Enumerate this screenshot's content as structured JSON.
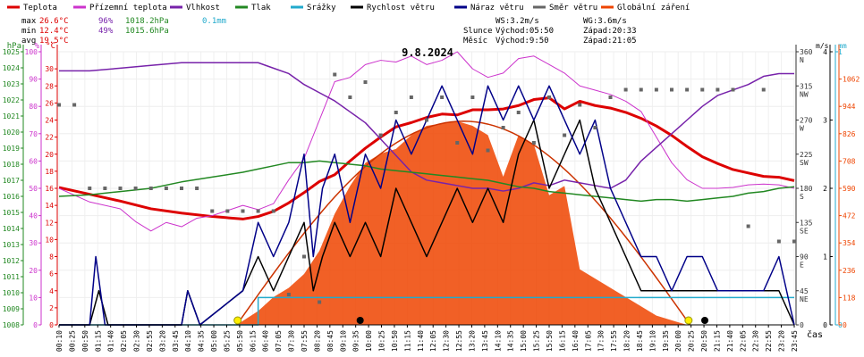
{
  "legend": [
    {
      "label": "Teplota",
      "color": "#dd0000"
    },
    {
      "label": "Přízemní teplota",
      "color": "#cc33cc"
    },
    {
      "label": "Vlhkost",
      "color": "#7722aa"
    },
    {
      "label": "Tlak",
      "color": "#228822"
    },
    {
      "label": "Srážky",
      "color": "#22aacc"
    },
    {
      "label": "Rychlost větru",
      "color": "#000000"
    },
    {
      "label": "Náraz větru",
      "color": "#000088"
    },
    {
      "label": "Směr větru",
      "color": "#666666"
    },
    {
      "label": "Globální záření",
      "color": "#ee4400"
    }
  ],
  "stats": {
    "max_label": "max",
    "max_temp": "26.6°C",
    "max_hum": "96%",
    "max_press": "1018.2hPa",
    "max_rain": "0.1mm",
    "min_label": "min",
    "min_temp": "12.4°C",
    "min_hum": "49%",
    "min_press": "1015.6hPa",
    "avg_label": "avg",
    "avg_temp": "19.5°C"
  },
  "wind_info": {
    "ws": "WS:3.2m/s",
    "wg": "WG:3.6m/s"
  },
  "sun_info": {
    "label": "Slunce",
    "rise": "Východ:05:50",
    "set": "Západ:20:33"
  },
  "moon_info": {
    "label": "Měsíc",
    "rise": "Východ:9:50",
    "set": "Západ:21:05"
  },
  "chart_data": {
    "type": "line",
    "title": "9.8.2024",
    "xlabel": "čas",
    "x_ticks": [
      "00:10",
      "00:25",
      "00:50",
      "01:15",
      "01:40",
      "02:05",
      "02:30",
      "02:55",
      "03:20",
      "03:45",
      "04:10",
      "04:35",
      "05:00",
      "05:25",
      "05:50",
      "06:15",
      "06:40",
      "07:05",
      "07:30",
      "07:55",
      "08:20",
      "08:45",
      "09:10",
      "09:35",
      "10:00",
      "10:25",
      "10:50",
      "11:15",
      "11:40",
      "12:05",
      "12:30",
      "12:55",
      "13:20",
      "13:45",
      "14:10",
      "14:35",
      "15:00",
      "15:25",
      "15:50",
      "16:15",
      "16:40",
      "17:05",
      "17:30",
      "17:55",
      "18:20",
      "18:45",
      "19:10",
      "19:35",
      "20:00",
      "20:25",
      "20:50",
      "21:15",
      "21:40",
      "22:05",
      "22:30",
      "22:55",
      "23:20",
      "23:45"
    ],
    "axes": {
      "hpa": {
        "label": "hPa",
        "min": 1008,
        "max": 1025,
        "ticks": [
          "1008",
          "1009",
          "1010",
          "1011",
          "1012",
          "1013",
          "1014",
          "1015",
          "1016",
          "1017",
          "1018",
          "1019",
          "1020",
          "1021",
          "1022",
          "1023",
          "1024",
          "1025"
        ]
      },
      "pct": {
        "label": "%",
        "min": 0,
        "max": 100,
        "ticks": [
          "0",
          "10",
          "20",
          "30",
          "40",
          "50",
          "60",
          "70",
          "80",
          "90",
          "100"
        ]
      },
      "temp": {
        "label": "°C",
        "min": 0,
        "max": 32,
        "ticks": [
          "0",
          "2",
          "4",
          "6",
          "8",
          "10",
          "12",
          "14",
          "16",
          "18",
          "20",
          "22",
          "24",
          "26",
          "28",
          "30"
        ]
      },
      "dir": {
        "min": 0,
        "max": 360,
        "ticks": [
          "0",
          "45 NE",
          "90 E",
          "135 SE",
          "180 S",
          "225 SW",
          "270 W",
          "315 NW",
          "360 N"
        ]
      },
      "wind": {
        "label": "m/s",
        "min": 0,
        "max": 4,
        "ticks": [
          "0",
          "1",
          "2",
          "3",
          "4"
        ]
      },
      "rain": {
        "label": "mm",
        "min": 0,
        "max": 1,
        "ticks": [
          "0",
          "1"
        ]
      },
      "rad": {
        "min": 0,
        "max": 1180,
        "ticks": [
          "0",
          "118",
          "236",
          "354",
          "472",
          "590",
          "708",
          "826",
          "944",
          "1062"
        ]
      }
    },
    "series": [
      {
        "name": "Teplota",
        "color": "#dd0000",
        "axis": "temp",
        "hours": [
          0,
          1,
          2,
          3,
          4,
          5,
          6,
          6.5,
          7,
          7.5,
          8,
          8.5,
          9,
          9.5,
          10,
          10.5,
          11,
          11.5,
          12,
          12.5,
          13,
          13.5,
          14,
          14.5,
          15,
          15.5,
          16,
          16.5,
          17,
          17.5,
          18,
          18.5,
          19,
          19.5,
          20,
          20.5,
          21,
          21.5,
          22,
          22.5,
          23,
          23.5,
          24
        ],
        "values": [
          16.1,
          15.3,
          14.5,
          13.6,
          13.1,
          12.7,
          12.4,
          12.7,
          13.3,
          14.3,
          15.5,
          16.8,
          17.6,
          19.2,
          20.7,
          22.0,
          23.2,
          23.7,
          24.3,
          24.7,
          24.6,
          25.2,
          25.2,
          25.3,
          25.7,
          26.4,
          26.6,
          25.3,
          26.2,
          25.7,
          25.4,
          24.9,
          24.2,
          23.3,
          22.2,
          20.9,
          19.7,
          18.9,
          18.2,
          17.8,
          17.4,
          17.3,
          16.9
        ]
      },
      {
        "name": "Přízemní teplota",
        "color": "#cc33cc",
        "axis": "temp",
        "hours": [
          0,
          1,
          2,
          2.5,
          3,
          3.5,
          4,
          4.5,
          5,
          5.5,
          6,
          6.5,
          7,
          7.5,
          8,
          8.5,
          9,
          9.5,
          10,
          10.5,
          11,
          11.5,
          12,
          12.5,
          13,
          13.5,
          14,
          14.5,
          15,
          15.5,
          16,
          16.5,
          17,
          17.5,
          18,
          18.5,
          19,
          19.5,
          20,
          20.5,
          21,
          21.5,
          22,
          22.5,
          23,
          23.5,
          24
        ],
        "values": [
          16.0,
          14.4,
          13.6,
          12.1,
          11.0,
          12.0,
          11.5,
          12.5,
          12.8,
          13.4,
          14.0,
          13.5,
          14.2,
          17.0,
          19.5,
          24.0,
          28.5,
          29.0,
          30.5,
          31.0,
          30.8,
          31.5,
          30.5,
          31.0,
          32.0,
          30.0,
          29.0,
          29.5,
          31.2,
          31.5,
          30.5,
          29.5,
          28.0,
          27.5,
          27.0,
          26.2,
          25.0,
          22.0,
          19.0,
          17.0,
          16.0,
          16.0,
          16.1,
          16.4,
          16.5,
          16.4,
          16.0
        ]
      },
      {
        "name": "Vlhkost",
        "color": "#7722aa",
        "axis": "pct",
        "hours": [
          0,
          1,
          2,
          3,
          4,
          5,
          6,
          6.5,
          7,
          7.5,
          8,
          8.5,
          9,
          9.5,
          10,
          10.5,
          11,
          11.5,
          12,
          12.5,
          13,
          13.5,
          14,
          14.5,
          15,
          15.5,
          16,
          16.5,
          17,
          17.5,
          18,
          18.5,
          19,
          19.5,
          20,
          20.5,
          21,
          21.5,
          22,
          22.5,
          23,
          23.5,
          24
        ],
        "values": [
          93,
          93,
          94,
          95,
          96,
          96,
          96,
          96,
          94,
          92,
          88,
          85,
          82,
          78,
          74,
          68,
          62,
          56,
          53,
          52,
          51,
          50,
          50,
          49,
          50,
          52,
          51,
          53,
          52,
          51,
          50,
          53,
          60,
          65,
          70,
          75,
          80,
          84,
          86,
          88,
          91,
          92,
          92
        ]
      },
      {
        "name": "Tlak",
        "color": "#228822",
        "axis": "hpa",
        "hours": [
          0,
          1,
          2,
          3,
          4,
          5,
          6,
          6.5,
          7,
          7.5,
          8,
          8.5,
          9,
          9.5,
          10,
          10.5,
          11,
          11.5,
          12,
          12.5,
          13,
          13.5,
          14,
          14.5,
          15,
          15.5,
          16,
          16.5,
          17,
          17.5,
          18,
          18.5,
          19,
          19.5,
          20,
          20.5,
          21,
          21.5,
          22,
          22.5,
          23,
          23.5,
          24
        ],
        "values": [
          1016.0,
          1016.1,
          1016.3,
          1016.5,
          1016.9,
          1017.2,
          1017.5,
          1017.7,
          1017.9,
          1018.1,
          1018.1,
          1018.2,
          1018.1,
          1018.0,
          1017.9,
          1017.7,
          1017.6,
          1017.5,
          1017.4,
          1017.3,
          1017.2,
          1017.1,
          1017.0,
          1016.8,
          1016.6,
          1016.5,
          1016.3,
          1016.2,
          1016.1,
          1016.0,
          1015.9,
          1015.8,
          1015.7,
          1015.8,
          1015.8,
          1015.7,
          1015.8,
          1015.9,
          1016.0,
          1016.2,
          1016.3,
          1016.5,
          1016.6
        ]
      },
      {
        "name": "Srážky",
        "color": "#22aacc",
        "axis": "rain",
        "hours": [
          0,
          6.5,
          6.5,
          24
        ],
        "values": [
          0,
          0,
          0.1,
          0.1
        ]
      },
      {
        "name": "Rychlost větru",
        "color": "#000000",
        "axis": "wind",
        "hours": [
          0,
          1,
          1.3,
          1.6,
          2,
          4,
          4.2,
          4.6,
          6,
          6.5,
          7,
          7.5,
          8,
          8.3,
          8.6,
          9,
          9.5,
          10,
          10.5,
          11,
          11.5,
          12,
          12.5,
          13,
          13.5,
          14,
          14.5,
          15,
          15.5,
          16,
          16.5,
          17,
          17.5,
          18,
          18.5,
          19,
          19.5,
          20,
          20.5,
          21,
          21.5,
          22,
          22.5,
          23,
          23.5,
          24
        ],
        "values": [
          0,
          0,
          0.5,
          0,
          0,
          0,
          0.5,
          0,
          0.5,
          1,
          0.5,
          1,
          1.5,
          0.5,
          1,
          1.5,
          1,
          1.5,
          1,
          2,
          1.5,
          1,
          1.5,
          2,
          1.5,
          2,
          1.5,
          2.5,
          3,
          2,
          2.5,
          3,
          2,
          1.5,
          1,
          0.5,
          0.5,
          0.5,
          0.5,
          0.5,
          0.5,
          0.5,
          0.5,
          0.5,
          0.5,
          0
        ]
      },
      {
        "name": "Náraz větru",
        "color": "#000088",
        "axis": "wind",
        "hours": [
          0,
          1,
          1.2,
          1.5,
          2,
          4,
          4.2,
          4.6,
          6,
          6.5,
          7,
          7.5,
          8,
          8.3,
          8.6,
          9,
          9.5,
          10,
          10.5,
          11,
          11.5,
          12,
          12.5,
          13,
          13.5,
          14,
          14.5,
          15,
          15.5,
          16,
          16.5,
          17,
          17.5,
          18,
          18.5,
          19,
          19.5,
          20,
          20.5,
          21,
          21.5,
          22,
          22.5,
          23,
          23.5,
          24
        ],
        "values": [
          0,
          0,
          1,
          0,
          0,
          0,
          0.5,
          0,
          0.5,
          1.5,
          1,
          1.5,
          2.5,
          1,
          2,
          2.5,
          1.5,
          2.5,
          2,
          3,
          2.5,
          3,
          3.5,
          3,
          2.5,
          3.5,
          3,
          3.5,
          3,
          3.5,
          3,
          2.5,
          3,
          2,
          1.5,
          1,
          1,
          0.5,
          1,
          1,
          0.5,
          0.5,
          0.5,
          0.5,
          1,
          0
        ]
      },
      {
        "name": "Globální záření",
        "color": "#ee4400",
        "axis": "rad",
        "hours": [
          5.8,
          6.5,
          7,
          7.5,
          8,
          8.5,
          9,
          9.5,
          10,
          10.5,
          11,
          11.5,
          12,
          12.5,
          13,
          13.5,
          14,
          14.5,
          15,
          15.5,
          16,
          16.5,
          17,
          17.5,
          18,
          18.5,
          19,
          19.5,
          20,
          20.5
        ],
        "values": [
          0,
          60,
          120,
          160,
          220,
          320,
          480,
          600,
          700,
          740,
          760,
          820,
          860,
          870,
          880,
          860,
          820,
          640,
          820,
          780,
          560,
          600,
          240,
          200,
          160,
          120,
          80,
          40,
          20,
          0
        ]
      },
      {
        "name": "Směr větru",
        "color": "#666666",
        "axis": "dir",
        "hours": [
          0,
          0.5,
          1,
          1.5,
          2,
          2.5,
          3,
          3.5,
          4,
          4.5,
          5,
          5.5,
          6,
          6.5,
          7,
          7.5,
          8,
          8.5,
          9,
          9.5,
          10,
          10.5,
          11,
          11.5,
          12,
          12.5,
          13,
          13.5,
          14,
          14.5,
          15,
          15.5,
          16,
          16.5,
          17,
          17.5,
          18,
          18.5,
          19,
          19.5,
          20,
          20.5,
          21,
          21.5,
          22,
          22.5,
          23,
          23.5,
          24
        ],
        "values": [
          290,
          290,
          180,
          180,
          180,
          180,
          180,
          180,
          180,
          180,
          150,
          150,
          150,
          150,
          150,
          40,
          90,
          30,
          330,
          300,
          320,
          250,
          280,
          300,
          270,
          300,
          240,
          300,
          230,
          260,
          280,
          240,
          300,
          250,
          290,
          260,
          300,
          310,
          310,
          310,
          310,
          310,
          310,
          310,
          310,
          130,
          310,
          110,
          110
        ]
      }
    ]
  }
}
